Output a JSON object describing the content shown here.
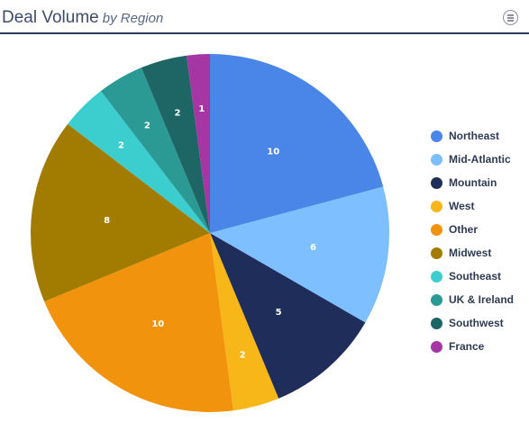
{
  "header": {
    "title": "Deal Volume",
    "subtitle": "by Region",
    "menu_icon": "hamburger-circle-icon"
  },
  "chart_data": {
    "type": "pie",
    "start_angle_deg": 0,
    "direction": "clockwise",
    "legend_position": "right",
    "slices": [
      {
        "label": "Northeast",
        "value": 10,
        "color": "#4a86e8"
      },
      {
        "label": "Mid-Atlantic",
        "value": 6,
        "color": "#7dbfff"
      },
      {
        "label": "Mountain",
        "value": 5,
        "color": "#1f2d5a"
      },
      {
        "label": "West",
        "value": 2,
        "color": "#f7b718"
      },
      {
        "label": "Other",
        "value": 10,
        "color": "#f2930d"
      },
      {
        "label": "Midwest",
        "value": 8,
        "color": "#a27c00"
      },
      {
        "label": "Southeast",
        "value": 2,
        "color": "#3ccece"
      },
      {
        "label": "UK & Ireland",
        "value": 2,
        "color": "#2b9a95"
      },
      {
        "label": "Southwest",
        "value": 2,
        "color": "#1e6665"
      },
      {
        "label": "France",
        "value": 1,
        "color": "#a636a4"
      }
    ]
  }
}
